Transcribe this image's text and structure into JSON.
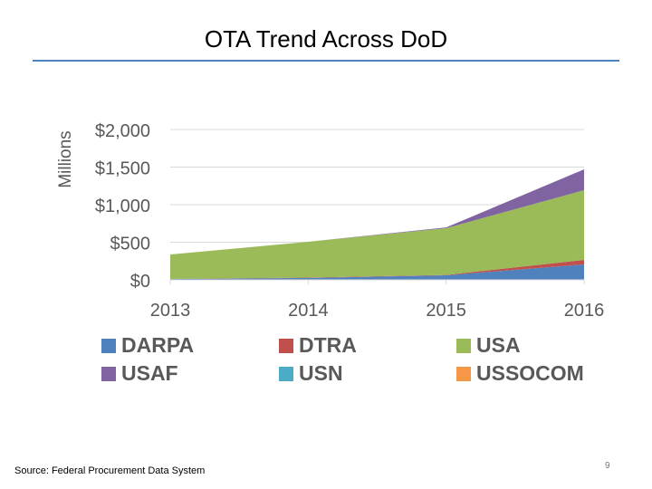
{
  "title": "OTA Trend Across DoD",
  "source": "Source: Federal Procurement Data System",
  "page_number": "9",
  "chart_data": {
    "type": "area",
    "stacked": true,
    "title": "",
    "ylabel": "Millions",
    "xlabel": "",
    "categories": [
      "2013",
      "2014",
      "2015",
      "2016"
    ],
    "ylim": [
      0,
      2000
    ],
    "yticks": [
      "$0",
      "$500",
      "$1,000",
      "$1,500",
      "$2,000"
    ],
    "grid": true,
    "legend_position": "bottom",
    "series": [
      {
        "name": "DARPA",
        "color": "#4f81bd",
        "values": [
          10,
          25,
          60,
          205
        ]
      },
      {
        "name": "DTRA",
        "color": "#c0504d",
        "values": [
          2,
          5,
          5,
          60
        ]
      },
      {
        "name": "USA",
        "color": "#9bbb59",
        "values": [
          325,
          476,
          622,
          928
        ]
      },
      {
        "name": "USAF",
        "color": "#8064a2",
        "values": [
          0,
          0,
          10,
          277
        ]
      },
      {
        "name": "USN",
        "color": "#4bacc6",
        "values": [
          0,
          0,
          0,
          0
        ]
      },
      {
        "name": "USSOCOM",
        "color": "#f79646",
        "values": [
          0,
          0,
          0,
          0
        ]
      }
    ]
  }
}
